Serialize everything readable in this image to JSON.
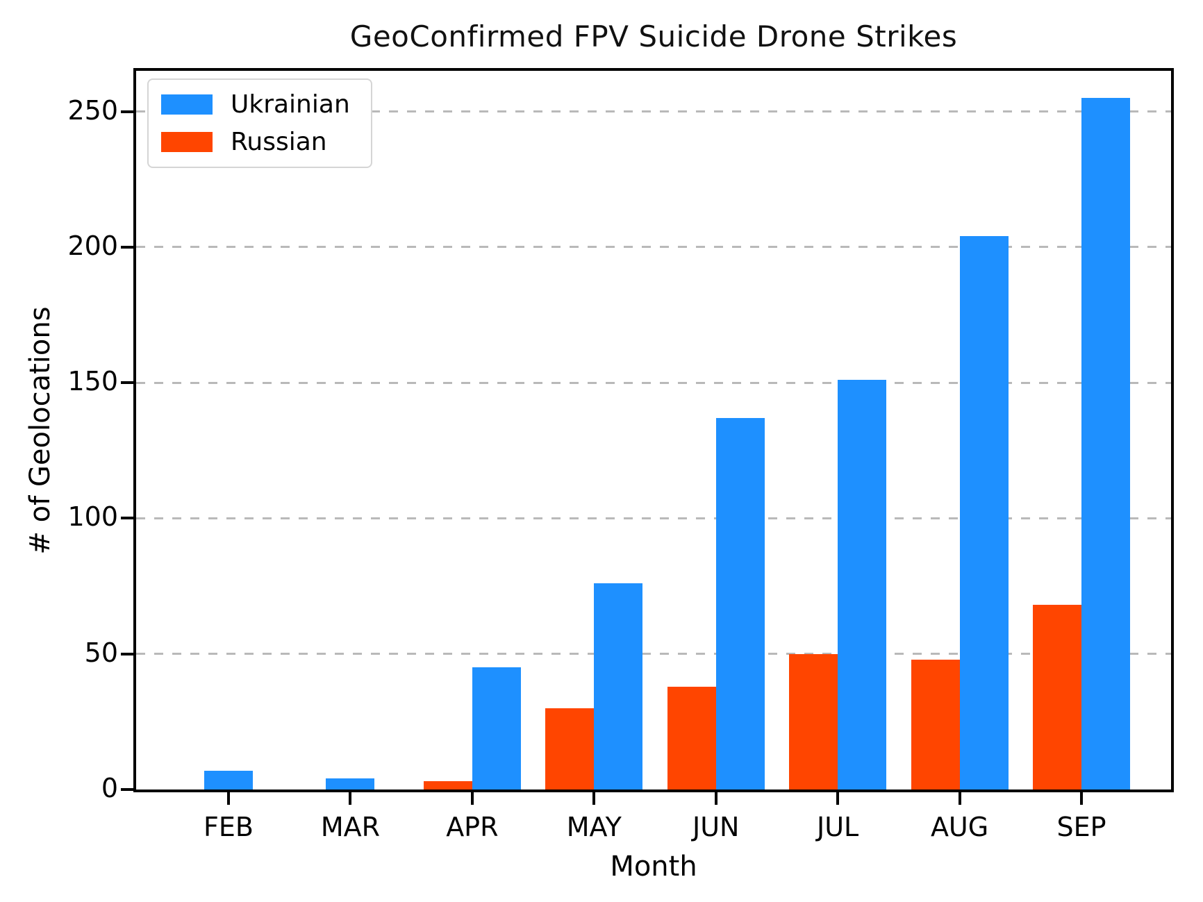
{
  "title": "GeoConfirmed FPV Suicide Drone Strikes",
  "chart_data": {
    "type": "bar",
    "title": "GeoConfirmed FPV Suicide Drone Strikes",
    "xlabel": "Month",
    "ylabel": "# of Geolocations",
    "categories": [
      "FEB",
      "MAR",
      "APR",
      "MAY",
      "JUN",
      "JUL",
      "AUG",
      "SEP"
    ],
    "series": [
      {
        "name": "Ukrainian",
        "color": "#1E90FF",
        "values": [
          7,
          4,
          45,
          76,
          137,
          151,
          204,
          255
        ]
      },
      {
        "name": "Russian",
        "color": "#FF4500",
        "values": [
          0,
          0,
          3,
          30,
          38,
          50,
          48,
          68
        ]
      }
    ],
    "ylim": [
      0,
      265
    ],
    "yticks": [
      0,
      50,
      100,
      150,
      200,
      250
    ],
    "grid": "horizontal-dashed",
    "grid_color": "#b9b9b9",
    "legend_position": "upper-left",
    "legend_entries": [
      "Ukrainian",
      "Russian"
    ]
  }
}
